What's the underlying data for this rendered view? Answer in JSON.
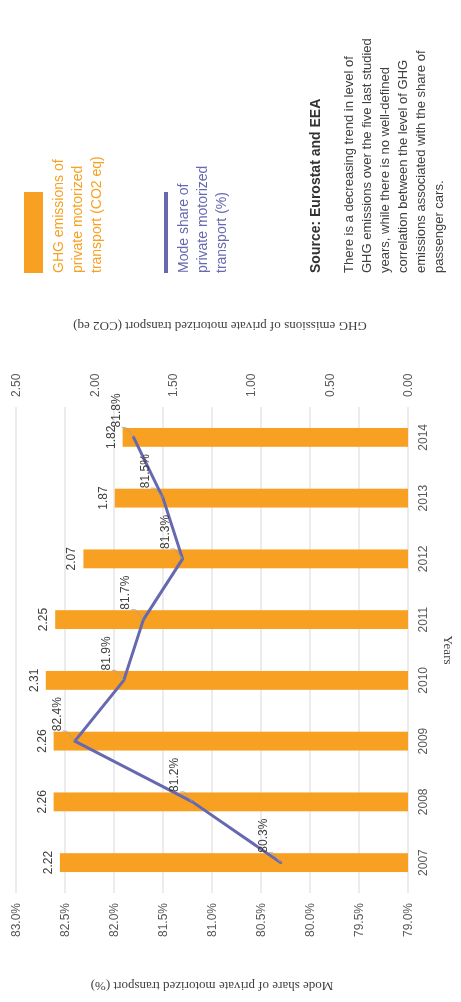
{
  "chart_data": {
    "type": "bar",
    "orientation": "horizontal",
    "xlabel": "Mode share of private motorized transport (%)",
    "x2label": "GHG emissions of private motorized transport (CO2 eq)",
    "ylabel": "Years",
    "categories": [
      "2014",
      "2013",
      "2012",
      "2011",
      "2010",
      "2009",
      "2008",
      "2007"
    ],
    "series": [
      {
        "name": "GHG emissions of private motorized transport (CO2 eq)",
        "axis": "x2",
        "color": "#f7a021",
        "values": [
          1.82,
          1.87,
          2.07,
          2.25,
          2.31,
          2.26,
          2.26,
          2.22
        ],
        "value_labels": [
          "1.82",
          "1.87",
          "2.07",
          "2.25",
          "2.31",
          "2.26",
          "2.26",
          "2.22"
        ]
      },
      {
        "name": "Mode share of private motorized transport (%)",
        "type": "line",
        "color": "#6668b0",
        "values": [
          81.8,
          81.5,
          81.3,
          81.7,
          81.9,
          82.4,
          81.2,
          80.3
        ],
        "value_labels": [
          "81.8%",
          "81.5%",
          "81.3%",
          "81.7%",
          "81.9%",
          "82.4%",
          "81.2%",
          "80.3%"
        ]
      }
    ],
    "xlim": [
      83,
      79
    ],
    "xticks": [
      {
        "value": 83,
        "label": "83.0%"
      },
      {
        "value": 82.5,
        "label": "82.5%"
      },
      {
        "value": 82,
        "label": "82.0%"
      },
      {
        "value": 81.5,
        "label": "81.5%"
      },
      {
        "value": 81,
        "label": "81.0%"
      },
      {
        "value": 80.5,
        "label": "80.5%"
      },
      {
        "value": 80,
        "label": "80.0%"
      },
      {
        "value": 79.5,
        "label": "79.5%"
      },
      {
        "value": 79,
        "label": "79.0%"
      }
    ],
    "x2lim": [
      2.5,
      0
    ],
    "x2ticks": [
      {
        "value": 2.5,
        "label": "2.50"
      },
      {
        "value": 2,
        "label": "2.00"
      },
      {
        "value": 1.5,
        "label": "1.50"
      },
      {
        "value": 1,
        "label": "1.00"
      },
      {
        "value": 0.5,
        "label": "0.50"
      },
      {
        "value": 0,
        "label": "0.00"
      }
    ],
    "grid": "x",
    "legend": "top",
    "marker": "none",
    "line_style": "solid",
    "annotations": [
      "Source: Eurostat and EEA",
      "There is a decreasing trend in level of GHG emissions over the five last studied years, while there is no well-defined correlation between the level of GHG emissions associated with the share of passenger cars."
    ]
  }
}
